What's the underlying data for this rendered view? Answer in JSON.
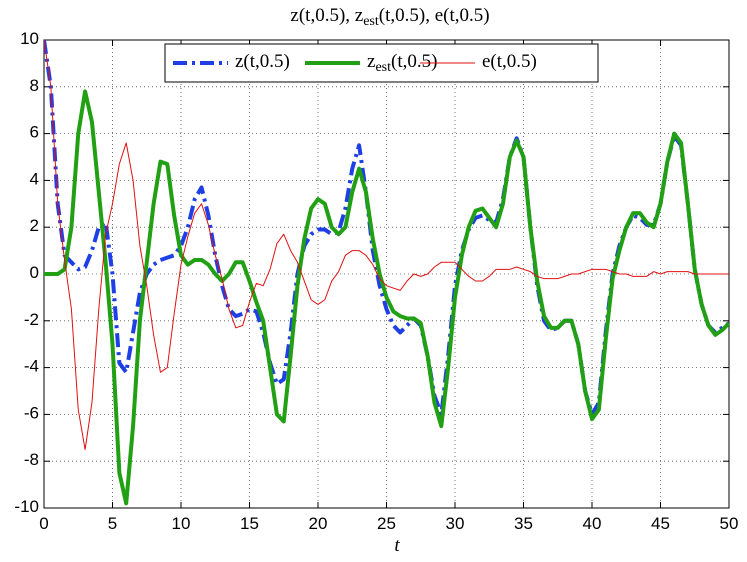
{
  "chart_data": {
    "type": "line",
    "title": "z(t,0.5), z_est(t,0.5), e(t,0.5)",
    "xlabel": "t",
    "x": [
      0,
      0.5,
      1,
      1.5,
      2,
      2.5,
      3,
      3.5,
      4,
      4.5,
      5,
      5.5,
      6,
      6.5,
      7,
      7.5,
      8,
      8.5,
      9,
      9.5,
      10,
      10.5,
      11,
      11.5,
      12,
      12.5,
      13,
      13.5,
      14,
      14.5,
      15,
      15.5,
      16,
      16.5,
      17,
      17.5,
      18,
      18.5,
      19,
      19.5,
      20,
      20.5,
      21,
      21.5,
      22,
      22.5,
      23,
      23.5,
      24,
      24.5,
      25,
      25.5,
      26,
      26.5,
      27,
      27.5,
      28,
      28.5,
      29,
      29.5,
      30,
      30.5,
      31,
      31.5,
      32,
      32.5,
      33,
      33.5,
      34,
      34.5,
      35,
      35.5,
      36,
      36.5,
      37,
      37.5,
      38,
      38.5,
      39,
      39.5,
      40,
      40.5,
      41,
      41.5,
      42,
      42.5,
      43,
      43.5,
      44,
      44.5,
      45,
      45.5,
      46,
      46.5,
      47,
      47.5,
      48,
      48.5,
      49,
      49.5,
      50
    ],
    "series": [
      {
        "name": "z(t,0.5)",
        "color": "#1f3fe6",
        "linestyle": "dashdot",
        "width": 4,
        "values": [
          10,
          8,
          3,
          0.8,
          0.5,
          0.2,
          0.3,
          1.0,
          2.0,
          2.2,
          0,
          -3.8,
          -4.2,
          -2.5,
          -0.8,
          0,
          0.4,
          0.6,
          0.7,
          0.8,
          1.2,
          2.0,
          3.2,
          3.7,
          2.5,
          0.8,
          -0.5,
          -1.5,
          -1.8,
          -1.7,
          -1.5,
          -1.6,
          -2.5,
          -3.8,
          -4.7,
          -4.5,
          -2.5,
          0,
          1.2,
          1.7,
          1.9,
          1.9,
          1.7,
          1.8,
          2.8,
          4.5,
          5.5,
          3.5,
          1.0,
          -0.5,
          -1.5,
          -2.2,
          -2.5,
          -2.2,
          -1.9,
          -2.2,
          -3.5,
          -5.2,
          -6.0,
          -3.5,
          -0.5,
          1.0,
          1.9,
          2.4,
          2.5,
          2.3,
          2.2,
          3.2,
          5.0,
          5.8,
          5.0,
          2.0,
          -0.5,
          -2.0,
          -2.4,
          -2.3,
          -2.0,
          -2.0,
          -3.0,
          -5.0,
          -6.0,
          -5.5,
          -2.5,
          0,
          1.2,
          2.0,
          2.5,
          2.4,
          2.1,
          2.1,
          3.0,
          4.8,
          5.9,
          5.5,
          3.0,
          0.2,
          -1.3,
          -2.2,
          -2.5,
          -2.3,
          -2.1
        ]
      },
      {
        "name": "z_est(t,0.5)",
        "color": "#22a014",
        "linestyle": "solid",
        "width": 4,
        "values": [
          0,
          0,
          0,
          0.2,
          2.0,
          6.0,
          7.8,
          6.5,
          3.5,
          0.5,
          -3.0,
          -8.5,
          -9.8,
          -6.5,
          -2.0,
          0.5,
          3.0,
          4.8,
          4.7,
          2.5,
          0.8,
          0.4,
          0.6,
          0.6,
          0.4,
          0,
          -0.3,
          0,
          0.5,
          0.5,
          -0.3,
          -1.2,
          -2.0,
          -4.0,
          -6.0,
          -6.3,
          -3.5,
          -0.5,
          1.5,
          2.8,
          3.2,
          3.0,
          2.0,
          1.7,
          2.0,
          3.5,
          4.5,
          3.5,
          1.5,
          0,
          -1.0,
          -1.6,
          -1.8,
          -1.9,
          -1.9,
          -2.1,
          -3.5,
          -5.5,
          -6.5,
          -4.0,
          -1.0,
          0.8,
          2.0,
          2.7,
          2.8,
          2.4,
          2.0,
          3.0,
          5.0,
          5.7,
          5.0,
          2.0,
          -0.3,
          -1.8,
          -2.3,
          -2.3,
          -2.0,
          -2.0,
          -3.0,
          -5.0,
          -6.2,
          -5.8,
          -2.8,
          -0.2,
          1.0,
          2.0,
          2.6,
          2.6,
          2.2,
          2.0,
          3.0,
          4.8,
          6.0,
          5.6,
          3.0,
          0.2,
          -1.3,
          -2.2,
          -2.6,
          -2.4,
          -2.1
        ]
      },
      {
        "name": "e(t,0.5)",
        "color": "#e01010",
        "linestyle": "solid",
        "width": 1,
        "values": [
          10,
          8,
          3,
          0.6,
          -1.5,
          -5.8,
          -7.5,
          -5.5,
          -1.5,
          1.7,
          3.0,
          4.7,
          5.6,
          4.0,
          1.2,
          -0.5,
          -2.6,
          -4.2,
          -4.0,
          -1.7,
          0.4,
          1.6,
          2.6,
          3.0,
          2.1,
          0.8,
          -0.2,
          -1.5,
          -2.3,
          -2.2,
          -1.2,
          -0.4,
          -0.5,
          0.2,
          1.3,
          1.7,
          1.0,
          0.5,
          -0.3,
          -1.1,
          -1.3,
          -1.1,
          -0.3,
          0.1,
          0.8,
          1.0,
          1.0,
          0.8,
          0.4,
          -0.2,
          -0.5,
          -0.6,
          -0.7,
          -0.3,
          0,
          -0.1,
          0,
          0.3,
          0.5,
          0.5,
          0.5,
          0.2,
          -0.1,
          -0.3,
          -0.3,
          -0.1,
          0.2,
          0.2,
          0.2,
          0.3,
          0.2,
          0.1,
          -0.1,
          -0.2,
          -0.2,
          -0.2,
          -0.1,
          0,
          0,
          0.1,
          0.2,
          0.2,
          0.2,
          0.1,
          0,
          0,
          -0.1,
          -0.1,
          -0.1,
          0.1,
          0,
          0.1,
          0.1,
          0.1,
          0.1,
          0,
          0,
          0,
          0,
          0,
          0
        ]
      }
    ],
    "xlim": [
      0,
      50
    ],
    "xticks": [
      0,
      5,
      10,
      15,
      20,
      25,
      30,
      35,
      40,
      45,
      50
    ],
    "ylim": [
      -10,
      10
    ],
    "yticks": [
      -10,
      -8,
      -6,
      -4,
      -2,
      0,
      2,
      4,
      6,
      8,
      10
    ],
    "grid": true,
    "legend": "top"
  }
}
